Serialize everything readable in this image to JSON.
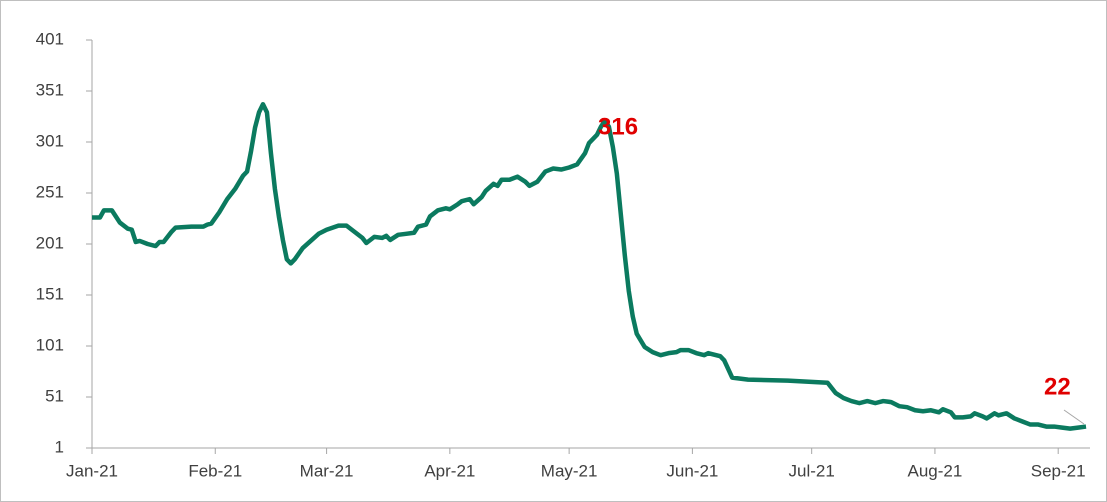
{
  "chart_data": {
    "type": "line",
    "x": [
      0,
      2,
      3,
      5,
      7,
      9,
      10,
      11,
      12,
      14,
      16,
      17,
      18,
      20,
      21,
      25,
      28,
      29,
      30,
      32,
      34,
      36,
      38,
      39,
      40,
      41,
      42,
      43,
      44,
      45,
      46,
      47,
      48,
      49,
      50,
      51,
      53,
      55,
      57,
      59,
      62,
      64,
      66,
      68,
      69,
      71,
      73,
      74,
      75,
      77,
      79,
      81,
      82,
      84,
      85,
      87,
      89,
      90,
      92,
      93,
      95,
      96,
      98,
      99,
      101,
      102,
      103,
      105,
      107,
      109,
      110,
      112,
      114,
      116,
      118,
      120,
      122,
      124,
      125,
      127,
      128,
      129,
      130,
      131,
      132,
      133,
      134,
      135,
      136,
      137,
      139,
      141,
      143,
      145,
      147,
      148,
      150,
      152,
      154,
      155,
      156,
      158,
      159,
      161,
      165,
      175,
      185,
      187,
      189,
      191,
      193,
      195,
      197,
      199,
      201,
      203,
      205,
      207,
      209,
      211,
      213,
      214,
      216,
      217,
      219,
      221,
      222,
      224,
      225,
      227,
      228,
      230,
      232,
      234,
      236,
      238,
      240,
      242,
      244,
      246,
      248,
      250
    ],
    "series": [
      {
        "color": "#0b7a5f",
        "values": [
          227,
          227,
          234,
          234,
          222,
          216,
          215,
          203,
          204,
          201,
          199,
          203,
          203,
          213,
          217,
          218,
          218,
          220,
          221,
          232,
          245,
          255,
          268,
          272,
          292,
          315,
          330,
          338,
          330,
          290,
          255,
          228,
          205,
          186,
          182,
          186,
          197,
          204,
          211,
          215,
          219,
          219,
          213,
          207,
          202,
          208,
          207,
          209,
          205,
          210,
          211,
          212,
          218,
          220,
          228,
          234,
          236,
          235,
          240,
          243,
          245,
          240,
          247,
          253,
          260,
          258,
          264,
          264,
          267,
          262,
          258,
          262,
          272,
          275,
          274,
          276,
          279,
          290,
          300,
          308,
          316,
          322,
          316,
          296,
          270,
          230,
          190,
          155,
          130,
          113,
          100,
          95,
          92,
          94,
          95,
          97,
          97,
          94,
          92,
          94,
          93,
          91,
          87,
          70,
          68,
          67,
          65,
          55,
          50,
          47,
          45,
          47,
          45,
          47,
          46,
          42,
          41,
          38,
          37,
          38,
          36,
          39,
          36,
          31,
          31,
          32,
          35,
          32,
          30,
          35,
          33,
          35,
          30,
          27,
          24,
          24,
          22,
          22,
          21,
          20,
          21,
          22
        ]
      }
    ],
    "xlim": [
      0,
      251
    ],
    "xticks": [
      {
        "value": 0,
        "label": "Jan-21"
      },
      {
        "value": 31,
        "label": "Feb-21"
      },
      {
        "value": 59,
        "label": "Mar-21"
      },
      {
        "value": 90,
        "label": "Apr-21"
      },
      {
        "value": 120,
        "label": "May-21"
      },
      {
        "value": 151,
        "label": "Jun-21"
      },
      {
        "value": 181,
        "label": "Jul-21"
      },
      {
        "value": 212,
        "label": "Aug-21"
      },
      {
        "value": 243,
        "label": "Sep-21"
      }
    ],
    "ylim": [
      1,
      401
    ],
    "yticks": [
      1,
      51,
      101,
      151,
      201,
      251,
      301,
      351,
      401
    ],
    "annotations": [
      {
        "text": "316"
      },
      {
        "text": "22"
      }
    ]
  }
}
